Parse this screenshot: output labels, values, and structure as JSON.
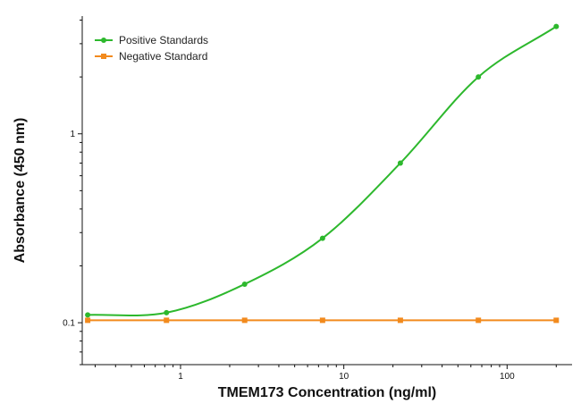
{
  "chart_data": {
    "type": "line",
    "title": "",
    "xlabel": "TMEM173 Concentration (ng/ml)",
    "ylabel": "Absorbance (450 nm)",
    "x_scale": "log",
    "y_scale": "log",
    "xlim": [
      0.25,
      250
    ],
    "ylim": [
      0.06,
      4.2
    ],
    "x_ticks": [
      1,
      10,
      100
    ],
    "x_tick_labels": [
      "1",
      "10",
      "100"
    ],
    "y_ticks": [
      0.1,
      1
    ],
    "y_tick_labels": [
      "0.1",
      "1"
    ],
    "grid": false,
    "legend_position": "top-left",
    "series": [
      {
        "name": "Positive Standards",
        "color": "#2db82d",
        "marker": "circle",
        "line": "fitted-curve",
        "x": [
          0.27,
          0.82,
          2.47,
          7.41,
          22.2,
          66.7,
          200
        ],
        "y": [
          0.11,
          0.113,
          0.16,
          0.28,
          0.7,
          2.0,
          3.7
        ]
      },
      {
        "name": "Negative Standard",
        "color": "#f28a1d",
        "marker": "square",
        "line": "straight",
        "x": [
          0.27,
          0.82,
          2.47,
          7.41,
          22.2,
          66.7,
          200
        ],
        "y": [
          0.103,
          0.103,
          0.103,
          0.103,
          0.103,
          0.103,
          0.103
        ]
      }
    ]
  }
}
